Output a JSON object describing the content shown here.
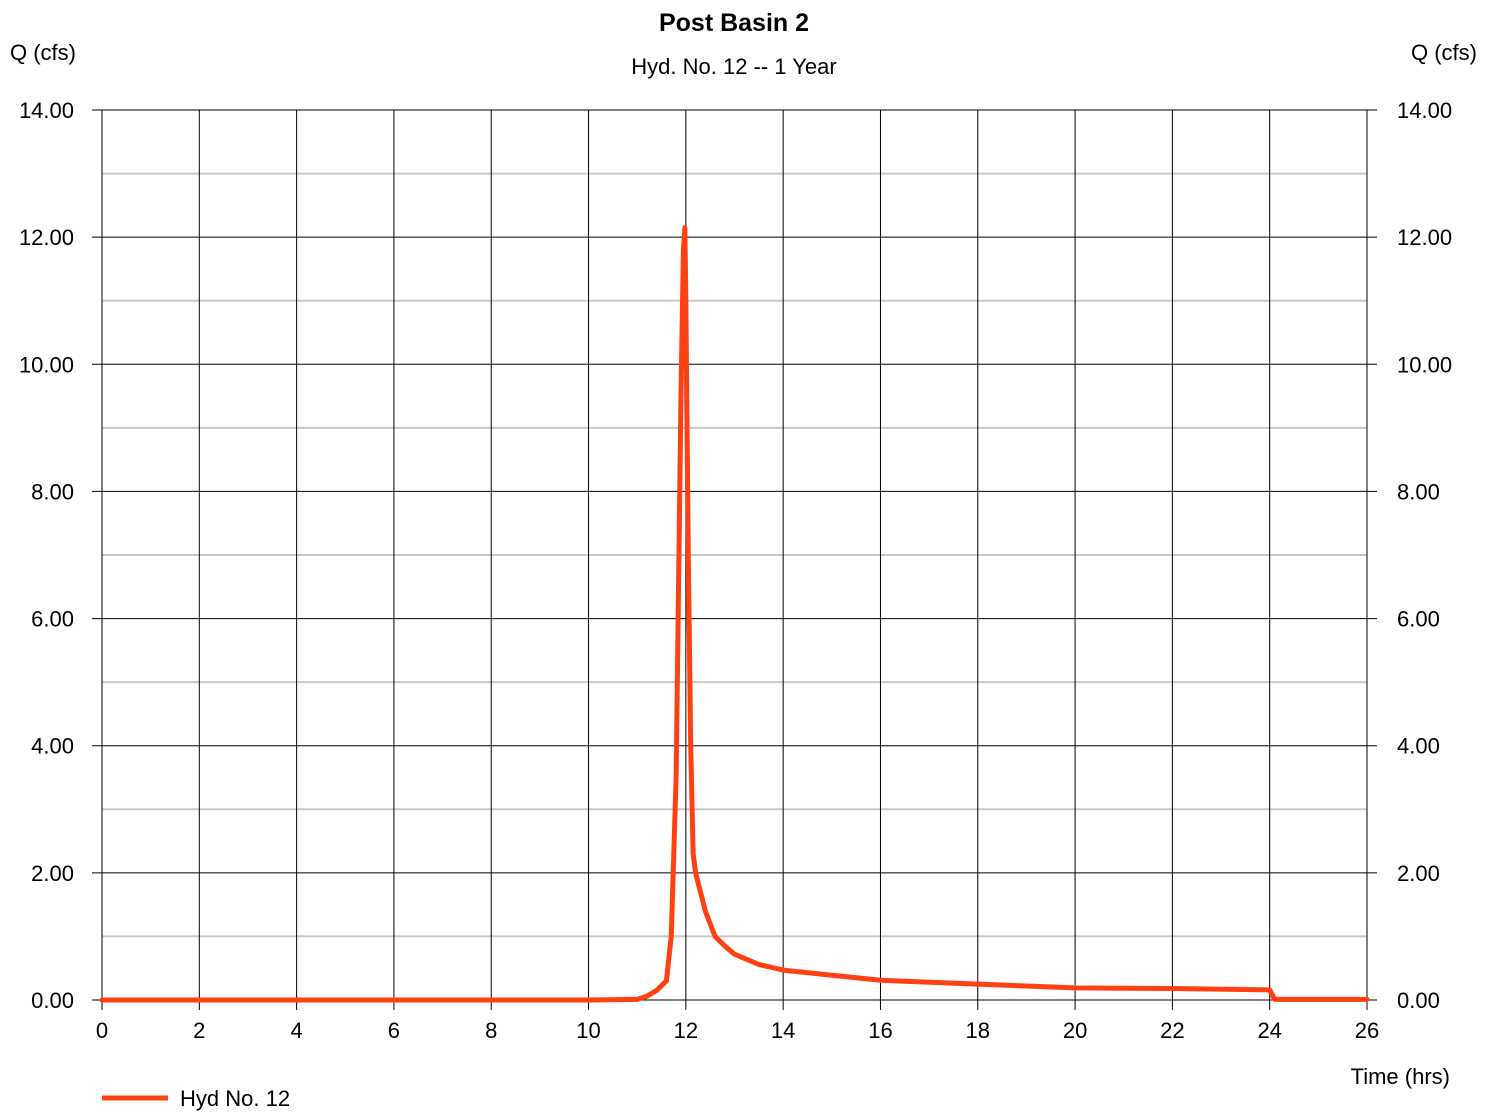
{
  "chart_data": {
    "type": "line",
    "title": "Post Basin 2",
    "subtitle": "Hyd. No. 12 -- 1 Year",
    "ylabel_left": "Q (cfs)",
    "ylabel_right": "Q (cfs)",
    "xlabel": "Time (hrs)",
    "xlim": [
      0,
      26
    ],
    "ylim": [
      0,
      14
    ],
    "x_ticks": [
      "0",
      "2",
      "4",
      "6",
      "8",
      "10",
      "12",
      "14",
      "16",
      "18",
      "20",
      "22",
      "24",
      "26"
    ],
    "y_ticks": [
      "0.00",
      "2.00",
      "4.00",
      "6.00",
      "8.00",
      "10.00",
      "12.00",
      "14.00"
    ],
    "x_tick_values": [
      0,
      2,
      4,
      6,
      8,
      10,
      12,
      14,
      16,
      18,
      20,
      22,
      24,
      26
    ],
    "y_tick_values": [
      0,
      2,
      4,
      6,
      8,
      10,
      12,
      14
    ],
    "y_minor_values": [
      1,
      3,
      5,
      7,
      9,
      11,
      13
    ],
    "grid": true,
    "legend_position": "bottom-left",
    "series": [
      {
        "name": "Hyd No. 12",
        "color": "#ff4010",
        "x": [
          0,
          10.0,
          11.0,
          11.2,
          11.4,
          11.6,
          11.7,
          11.8,
          11.85,
          11.9,
          11.95,
          11.98,
          12.0,
          12.05,
          12.1,
          12.15,
          12.2,
          12.4,
          12.6,
          12.8,
          13.0,
          13.5,
          14.0,
          15.0,
          16.0,
          18.0,
          20.0,
          22.0,
          24.0,
          24.1,
          26.0
        ],
        "y": [
          0,
          0,
          0.01,
          0.06,
          0.15,
          0.3,
          1.0,
          3.5,
          6.5,
          9.5,
          11.8,
          12.15,
          11.0,
          7.0,
          4.0,
          2.3,
          2.0,
          1.4,
          1.0,
          0.85,
          0.72,
          0.56,
          0.47,
          0.39,
          0.31,
          0.25,
          0.19,
          0.18,
          0.16,
          0.01,
          0.01
        ]
      }
    ]
  }
}
